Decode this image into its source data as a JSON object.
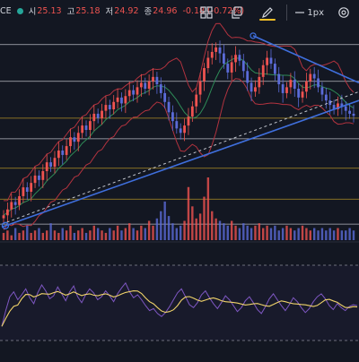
{
  "legend": {
    "symbol": "CE",
    "open_label": "시",
    "open": "25.13",
    "high_label": "고",
    "high": "25.18",
    "low_label": "저",
    "low": "24.92",
    "close_label": "종",
    "close": "24.96",
    "change": "-0.18 (-0.72%)",
    "status_color": "#26a69a",
    "change_color": "#ef5350"
  },
  "toolbar": {
    "items": [
      {
        "name": "layout-grid-icon",
        "icon": "grid"
      },
      {
        "name": "copy-icon",
        "icon": "copy"
      },
      {
        "name": "pencil-color-icon",
        "icon": "pencil",
        "color": "#f6c026"
      },
      {
        "name": "line-width-button",
        "label": "1px"
      },
      {
        "name": "settings-gear-icon",
        "icon": "gear"
      }
    ]
  },
  "colors": {
    "background": "#131722",
    "candle_up": "#ef5350",
    "candle_down": "#5b6bd8",
    "bollinger_band": "#b2333f",
    "bollinger_mid": "#2e8b57",
    "trendline": "#3f6fdd",
    "dashed_trend": "#c0c4cc",
    "horizontal_level": "#d1d4dc",
    "horizontal_level_gold": "#c9a227",
    "rsi_line": "#7e57c2",
    "rsi_signal": "#f0d36a",
    "volume_up": "#ef5350",
    "volume_down": "#5b6bd8"
  },
  "chart_data": {
    "type": "line",
    "price_closes": [
      18.2,
      18.6,
      19.1,
      18.9,
      19.5,
      20.1,
      19.8,
      20.4,
      20.9,
      20.6,
      21.2,
      21.8,
      21.5,
      22.1,
      22.6,
      22.3,
      22.9,
      23.5,
      23.2,
      23.8,
      24.3,
      24.0,
      24.6,
      25.1,
      24.8,
      25.3,
      25.7,
      25.4,
      25.9,
      26.2,
      25.8,
      26.3,
      26.7,
      26.4,
      26.9,
      27.2,
      26.8,
      27.3,
      27.6,
      27.1,
      26.5,
      25.9,
      25.2,
      24.6,
      24.1,
      23.8,
      24.3,
      24.9,
      25.6,
      26.4,
      27.3,
      28.2,
      28.9,
      29.3,
      29.6,
      29.2,
      28.5,
      27.9,
      28.6,
      29.1,
      28.7,
      28.0,
      27.2,
      26.6,
      26.9,
      27.6,
      28.4,
      28.9,
      28.5,
      27.8,
      27.1,
      26.5,
      26.9,
      27.4,
      26.8,
      26.2,
      26.6,
      27.3,
      27.8,
      27.5,
      26.9,
      26.4,
      26.0,
      25.7,
      25.4,
      25.8,
      25.6,
      25.3,
      25.1,
      24.96
    ],
    "y_axis_labels": [],
    "horizontal_levels": [
      29.8,
      27.3,
      24.8,
      23.4,
      21.4,
      19.3,
      17.6
    ],
    "rsi_values": [
      28,
      44,
      58,
      63,
      55,
      60,
      66,
      57,
      51,
      62,
      70,
      64,
      56,
      59,
      68,
      61,
      54,
      63,
      69,
      58,
      52,
      60,
      66,
      62,
      55,
      58,
      64,
      59,
      53,
      61,
      67,
      72,
      63,
      57,
      60,
      55,
      49,
      44,
      46,
      41,
      38,
      42,
      48,
      55,
      62,
      66,
      58,
      50,
      47,
      52,
      60,
      64,
      57,
      51,
      46,
      52,
      59,
      55,
      49,
      43,
      47,
      54,
      58,
      52,
      45,
      41,
      48,
      56,
      61,
      55,
      49,
      44,
      50,
      57,
      53,
      47,
      42,
      46,
      53,
      58,
      61,
      56,
      49,
      45,
      51,
      47,
      44,
      48,
      50,
      49
    ],
    "volume": [
      3,
      4,
      2,
      5,
      3,
      4,
      6,
      3,
      4,
      5,
      3,
      4,
      7,
      4,
      3,
      5,
      4,
      6,
      3,
      4,
      5,
      3,
      4,
      6,
      5,
      4,
      3,
      5,
      4,
      6,
      4,
      5,
      7,
      5,
      4,
      6,
      5,
      8,
      6,
      9,
      12,
      16,
      10,
      7,
      5,
      6,
      8,
      22,
      14,
      9,
      11,
      18,
      26,
      12,
      9,
      8,
      7,
      6,
      8,
      6,
      5,
      7,
      6,
      5,
      6,
      7,
      5,
      6,
      5,
      6,
      4,
      5,
      6,
      5,
      4,
      5,
      6,
      5,
      4,
      5,
      4,
      5,
      4,
      5,
      4,
      5,
      4,
      4,
      5,
      4
    ],
    "grid": false
  }
}
